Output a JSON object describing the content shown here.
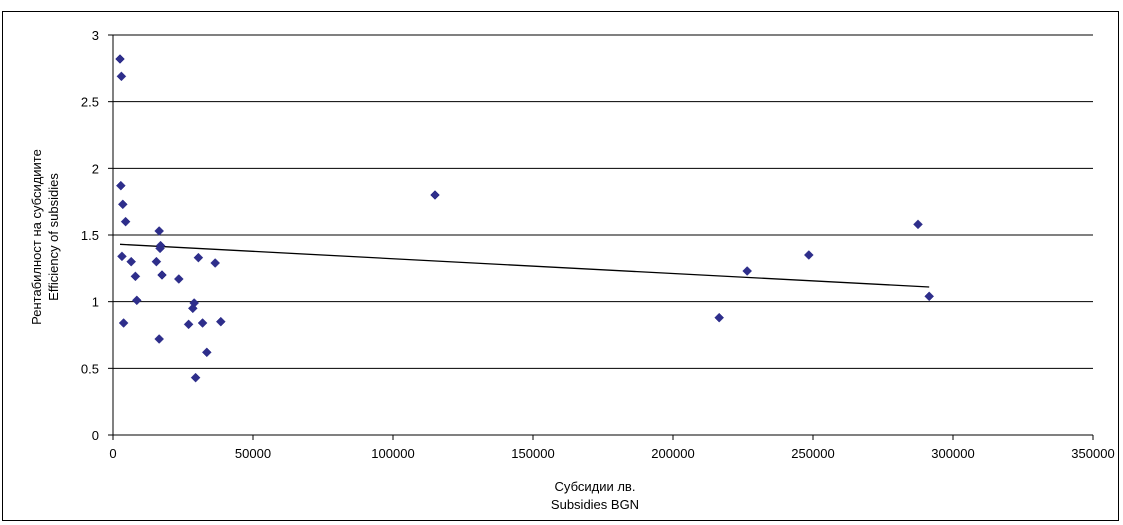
{
  "chart_data": {
    "type": "scatter",
    "xlabel": [
      "Субсидии лв.",
      "Subsidies BGN"
    ],
    "ylabel": [
      "Рентабилност на субсидиите",
      "Efficiency of subsidies"
    ],
    "xlim": [
      0,
      350000
    ],
    "ylim": [
      0,
      3
    ],
    "xticks": [
      "0",
      "50000",
      "100000",
      "150000",
      "200000",
      "250000",
      "300000",
      "350000"
    ],
    "yticks": [
      "0",
      "0.5",
      "1",
      "1.5",
      "2",
      "2.5",
      "3"
    ],
    "grid": "horizontal",
    "legend": "none",
    "marker_color": "#2E2E8B",
    "series": [
      {
        "x": [
          2500,
          3000,
          2800,
          3500,
          4500,
          3200,
          6500,
          8000,
          8500,
          3800,
          16500,
          17000,
          16800,
          15500,
          17500,
          16500,
          23500,
          27000,
          28500,
          29000,
          30500,
          32000,
          33500,
          36500,
          38500,
          29500,
          115000,
          216500,
          226500,
          248500,
          287500,
          291500
        ],
        "y": [
          2.82,
          2.69,
          1.87,
          1.73,
          1.6,
          1.34,
          1.3,
          1.19,
          1.01,
          0.84,
          1.53,
          1.42,
          1.4,
          1.3,
          1.2,
          0.72,
          1.17,
          0.83,
          0.95,
          0.99,
          1.33,
          0.84,
          0.62,
          1.29,
          0.85,
          0.43,
          1.8,
          0.88,
          1.23,
          1.35,
          1.58,
          1.04
        ]
      }
    ],
    "trendline": {
      "type": "linear",
      "x": [
        2500,
        291500
      ],
      "y": [
        1.43,
        1.11
      ]
    }
  }
}
